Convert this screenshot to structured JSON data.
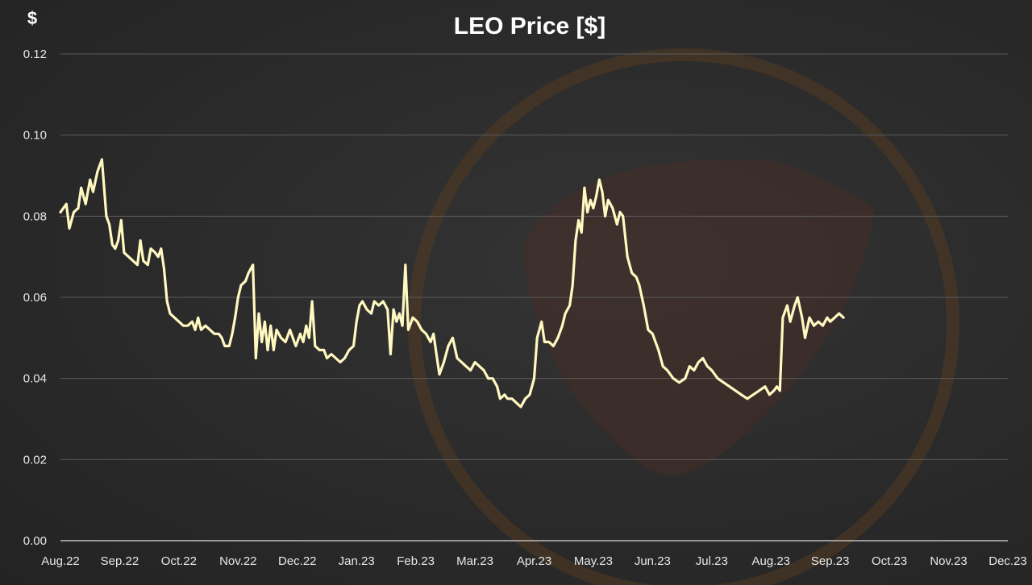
{
  "chart_data": {
    "type": "line",
    "title": "LEO Price [$]",
    "ylabel": "$",
    "xlabel": "",
    "ylim": [
      0,
      0.12
    ],
    "yticks": [
      "0.00",
      "0.02",
      "0.04",
      "0.06",
      "0.08",
      "0.10",
      "0.12"
    ],
    "xticks": [
      "Aug.22",
      "Sep.22",
      "Oct.22",
      "Nov.22",
      "Dec.22",
      "Jan.23",
      "Feb.23",
      "Mar.23",
      "Apr.23",
      "May.23",
      "Jun.23",
      "Jul.23",
      "Aug.23",
      "Sep.23",
      "Oct.23",
      "Nov.23",
      "Dec.23"
    ],
    "grid": true,
    "line_color": "#fff8c0",
    "series": [
      {
        "points": [
          [
            0.0,
            0.081
          ],
          [
            0.2,
            0.083
          ],
          [
            0.3,
            0.077
          ],
          [
            0.45,
            0.081
          ],
          [
            0.6,
            0.082
          ],
          [
            0.7,
            0.087
          ],
          [
            0.85,
            0.083
          ],
          [
            1.0,
            0.089
          ],
          [
            1.1,
            0.086
          ],
          [
            1.25,
            0.091
          ],
          [
            1.4,
            0.094
          ],
          [
            1.55,
            0.08
          ],
          [
            1.65,
            0.078
          ],
          [
            1.75,
            0.073
          ],
          [
            1.85,
            0.072
          ],
          [
            1.95,
            0.074
          ],
          [
            2.05,
            0.079
          ],
          [
            2.15,
            0.071
          ],
          [
            2.3,
            0.07
          ],
          [
            2.45,
            0.069
          ],
          [
            2.6,
            0.068
          ],
          [
            2.7,
            0.074
          ],
          [
            2.8,
            0.069
          ],
          [
            2.95,
            0.068
          ],
          [
            3.05,
            0.072
          ],
          [
            3.2,
            0.071
          ],
          [
            3.3,
            0.07
          ],
          [
            3.4,
            0.072
          ],
          [
            3.5,
            0.067
          ],
          [
            3.6,
            0.059
          ],
          [
            3.7,
            0.056
          ],
          [
            3.85,
            0.055
          ],
          [
            4.0,
            0.054
          ],
          [
            4.15,
            0.053
          ],
          [
            4.3,
            0.053
          ],
          [
            4.45,
            0.054
          ],
          [
            4.55,
            0.052
          ],
          [
            4.65,
            0.055
          ],
          [
            4.75,
            0.052
          ],
          [
            4.9,
            0.053
          ],
          [
            5.05,
            0.052
          ],
          [
            5.2,
            0.051
          ],
          [
            5.35,
            0.051
          ],
          [
            5.45,
            0.05
          ],
          [
            5.55,
            0.048
          ],
          [
            5.7,
            0.048
          ],
          [
            5.8,
            0.051
          ],
          [
            5.9,
            0.055
          ],
          [
            6.0,
            0.06
          ],
          [
            6.1,
            0.063
          ],
          [
            6.25,
            0.064
          ],
          [
            6.35,
            0.066
          ],
          [
            6.5,
            0.068
          ],
          [
            6.6,
            0.045
          ],
          [
            6.7,
            0.056
          ],
          [
            6.8,
            0.049
          ],
          [
            6.9,
            0.054
          ],
          [
            7.0,
            0.047
          ],
          [
            7.1,
            0.053
          ],
          [
            7.2,
            0.047
          ],
          [
            7.3,
            0.052
          ],
          [
            7.45,
            0.05
          ],
          [
            7.6,
            0.049
          ],
          [
            7.75,
            0.052
          ],
          [
            7.85,
            0.05
          ],
          [
            7.95,
            0.048
          ],
          [
            8.1,
            0.051
          ],
          [
            8.2,
            0.049
          ],
          [
            8.3,
            0.053
          ],
          [
            8.4,
            0.05
          ],
          [
            8.5,
            0.059
          ],
          [
            8.6,
            0.048
          ],
          [
            8.75,
            0.047
          ],
          [
            8.9,
            0.047
          ],
          [
            9.0,
            0.045
          ],
          [
            9.15,
            0.046
          ],
          [
            9.3,
            0.045
          ],
          [
            9.45,
            0.044
          ],
          [
            9.6,
            0.045
          ],
          [
            9.75,
            0.047
          ],
          [
            9.9,
            0.048
          ],
          [
            10.0,
            0.054
          ],
          [
            10.1,
            0.058
          ],
          [
            10.2,
            0.059
          ],
          [
            10.35,
            0.057
          ],
          [
            10.5,
            0.056
          ],
          [
            10.6,
            0.059
          ],
          [
            10.75,
            0.058
          ],
          [
            10.9,
            0.059
          ],
          [
            11.05,
            0.057
          ],
          [
            11.15,
            0.046
          ],
          [
            11.25,
            0.057
          ],
          [
            11.35,
            0.054
          ],
          [
            11.45,
            0.056
          ],
          [
            11.55,
            0.053
          ],
          [
            11.65,
            0.068
          ],
          [
            11.75,
            0.052
          ],
          [
            11.9,
            0.055
          ],
          [
            12.05,
            0.054
          ],
          [
            12.2,
            0.052
          ],
          [
            12.35,
            0.051
          ],
          [
            12.5,
            0.049
          ],
          [
            12.6,
            0.051
          ],
          [
            12.7,
            0.046
          ],
          [
            12.8,
            0.041
          ],
          [
            12.95,
            0.044
          ],
          [
            13.1,
            0.048
          ],
          [
            13.25,
            0.05
          ],
          [
            13.4,
            0.045
          ],
          [
            13.55,
            0.044
          ],
          [
            13.7,
            0.043
          ],
          [
            13.85,
            0.042
          ],
          [
            14.0,
            0.044
          ],
          [
            14.15,
            0.043
          ],
          [
            14.3,
            0.042
          ],
          [
            14.45,
            0.04
          ],
          [
            14.6,
            0.04
          ],
          [
            14.75,
            0.038
          ],
          [
            14.85,
            0.035
          ],
          [
            15.0,
            0.036
          ],
          [
            15.1,
            0.035
          ],
          [
            15.25,
            0.035
          ],
          [
            15.4,
            0.034
          ],
          [
            15.55,
            0.033
          ],
          [
            15.7,
            0.035
          ],
          [
            15.85,
            0.036
          ],
          [
            16.0,
            0.04
          ],
          [
            16.1,
            0.05
          ],
          [
            16.25,
            0.054
          ],
          [
            16.35,
            0.049
          ],
          [
            16.5,
            0.049
          ],
          [
            16.65,
            0.048
          ],
          [
            16.8,
            0.05
          ],
          [
            16.95,
            0.053
          ],
          [
            17.05,
            0.056
          ],
          [
            17.2,
            0.058
          ],
          [
            17.3,
            0.063
          ],
          [
            17.4,
            0.074
          ],
          [
            17.5,
            0.079
          ],
          [
            17.6,
            0.076
          ],
          [
            17.7,
            0.087
          ],
          [
            17.8,
            0.081
          ],
          [
            17.9,
            0.084
          ],
          [
            18.0,
            0.082
          ],
          [
            18.1,
            0.085
          ],
          [
            18.2,
            0.089
          ],
          [
            18.3,
            0.086
          ],
          [
            18.4,
            0.08
          ],
          [
            18.5,
            0.084
          ],
          [
            18.65,
            0.082
          ],
          [
            18.8,
            0.078
          ],
          [
            18.9,
            0.081
          ],
          [
            19.0,
            0.08
          ],
          [
            19.15,
            0.07
          ],
          [
            19.3,
            0.066
          ],
          [
            19.45,
            0.065
          ],
          [
            19.55,
            0.063
          ],
          [
            19.7,
            0.058
          ],
          [
            19.85,
            0.052
          ],
          [
            20.0,
            0.051
          ],
          [
            20.1,
            0.049
          ],
          [
            20.2,
            0.047
          ],
          [
            20.35,
            0.043
          ],
          [
            20.5,
            0.042
          ],
          [
            20.7,
            0.04
          ],
          [
            20.9,
            0.039
          ],
          [
            21.1,
            0.04
          ],
          [
            21.25,
            0.043
          ],
          [
            21.4,
            0.042
          ],
          [
            21.55,
            0.044
          ],
          [
            21.7,
            0.045
          ],
          [
            21.85,
            0.043
          ],
          [
            22.0,
            0.042
          ],
          [
            22.2,
            0.04
          ],
          [
            22.4,
            0.039
          ],
          [
            22.6,
            0.038
          ],
          [
            22.8,
            0.037
          ],
          [
            23.0,
            0.036
          ],
          [
            23.2,
            0.035
          ],
          [
            23.4,
            0.036
          ],
          [
            23.6,
            0.037
          ],
          [
            23.8,
            0.038
          ],
          [
            23.95,
            0.036
          ],
          [
            24.1,
            0.037
          ],
          [
            24.2,
            0.038
          ],
          [
            24.3,
            0.037
          ],
          [
            24.4,
            0.055
          ],
          [
            24.55,
            0.058
          ],
          [
            24.65,
            0.054
          ],
          [
            24.8,
            0.058
          ],
          [
            24.9,
            0.06
          ],
          [
            25.05,
            0.055
          ],
          [
            25.15,
            0.05
          ],
          [
            25.3,
            0.055
          ],
          [
            25.45,
            0.053
          ],
          [
            25.6,
            0.054
          ],
          [
            25.75,
            0.053
          ],
          [
            25.9,
            0.055
          ],
          [
            26.0,
            0.054
          ],
          [
            26.15,
            0.055
          ],
          [
            26.3,
            0.056
          ],
          [
            26.45,
            0.055
          ]
        ]
      }
    ]
  }
}
